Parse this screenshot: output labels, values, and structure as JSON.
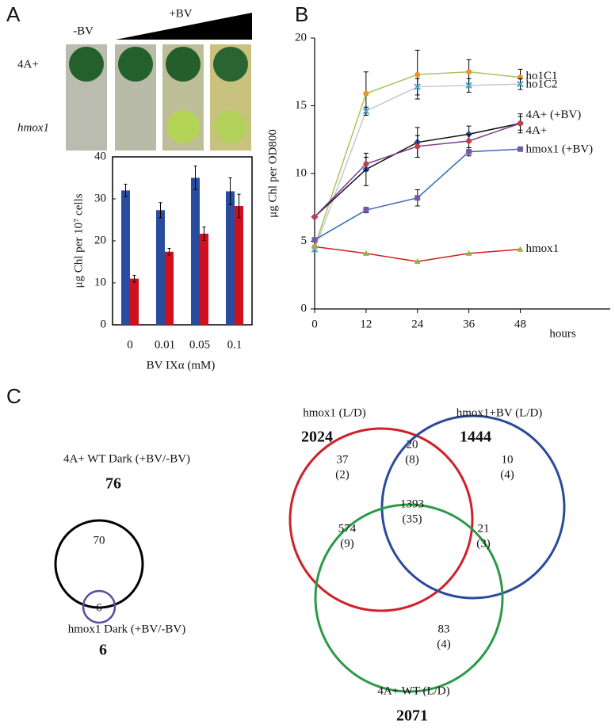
{
  "panel_labels": [
    "A",
    "B",
    "C"
  ],
  "plates": {
    "minus_label": "-BV",
    "plus_label": "+BV",
    "rows": [
      "4A+",
      "hmox1"
    ]
  },
  "chart_data": [
    {
      "type": "bar",
      "ylabel": "μg Chl per 10⁷ cells",
      "xlabel": "BV IXα (mM)",
      "categories": [
        "0",
        "0.01",
        "0.05",
        "0.1"
      ],
      "series": [
        {
          "color": "#2a4c9e",
          "values": [
            32,
            27.3,
            35,
            31.8
          ],
          "errors": [
            1.5,
            1.8,
            2.8,
            3.2
          ]
        },
        {
          "color": "#d0101c",
          "values": [
            11,
            17.4,
            21.7,
            28.3
          ],
          "errors": [
            0.8,
            0.8,
            1.6,
            2.8
          ]
        }
      ],
      "ylim": [
        0,
        40
      ],
      "yticks": [
        0,
        10,
        20,
        30,
        40
      ]
    },
    {
      "type": "line",
      "ylabel": "μg Chl per OD800",
      "xlabel": "hours",
      "x": [
        0,
        12,
        24,
        36,
        48
      ],
      "xlim": [
        0,
        69
      ],
      "xticks": [
        0,
        12,
        24,
        36,
        48
      ],
      "ylim": [
        0,
        20
      ],
      "yticks": [
        0,
        5,
        10,
        15,
        20
      ],
      "series": [
        {
          "name": "ho1C1",
          "color": "#a8c464",
          "marker": "circle",
          "marker_color": "#e8962c",
          "values": [
            4.6,
            15.9,
            17.3,
            17.5,
            17.1
          ],
          "errors": [
            null,
            1.6,
            1.8,
            0.9,
            0.6
          ]
        },
        {
          "name": "ho1C2",
          "color": "#c8c8c8",
          "marker": "x",
          "marker_color": "#4aa8d8",
          "values": [
            4.4,
            14.6,
            16.4,
            16.5,
            16.6
          ],
          "errors": [
            null,
            0.3,
            0.6,
            0.5,
            0.4
          ]
        },
        {
          "name": "4A+ (+BV)",
          "color": "#111111",
          "marker": "diamond",
          "marker_color": "#2a4c9e",
          "values": [
            6.8,
            10.3,
            12.3,
            12.9,
            13.7
          ],
          "errors": [
            null,
            1.2,
            1.1,
            0.6,
            0.7
          ]
        },
        {
          "name": "4A+",
          "color": "#7a3a8e",
          "marker": "circle",
          "marker_color": "#c0404a",
          "values": [
            6.8,
            10.7,
            12.0,
            12.4,
            13.7
          ],
          "errors": [
            null,
            0.5,
            0.8,
            0.5,
            0.5
          ]
        },
        {
          "name": "hmox1 (+BV)",
          "color": "#3a6ab0",
          "marker": "square",
          "marker_color": "#7a56a8",
          "values": [
            5.1,
            7.3,
            8.2,
            11.6,
            11.8
          ],
          "errors": [
            null,
            0.2,
            0.6,
            0.3,
            0.1
          ]
        },
        {
          "name": "hmox1",
          "color": "#d02020",
          "marker": "triangle",
          "marker_color": "#9ab040",
          "values": [
            4.6,
            4.1,
            3.5,
            4.1,
            4.4
          ],
          "errors": [
            null,
            null,
            null,
            null,
            null
          ]
        }
      ]
    },
    {
      "type": "venn",
      "sets": [
        {
          "name": "4A+ WT Dark (+BV/-BV)",
          "total": 76,
          "color": "#000000"
        },
        {
          "name": "hmox1 Dark (+BV/-BV)",
          "total": 6,
          "color": "#5b4a9e"
        }
      ],
      "regions": {
        "values": [
          70,
          6
        ]
      }
    },
    {
      "type": "venn",
      "sets": [
        {
          "name": "hmox1 (L/D)",
          "total": 2024,
          "color": "#d0202a"
        },
        {
          "name": "hmox1+BV (L/D)",
          "total": 1444,
          "color": "#2a4a9a"
        },
        {
          "name": "4A+ WT (L/D)",
          "total": 2071,
          "color": "#2a9a48"
        }
      ],
      "regions": {
        "values": [
          37,
          20,
          10,
          574,
          1393,
          21,
          83
        ],
        "dark_values": [
          2,
          8,
          4,
          9,
          35,
          3,
          4
        ],
        "dark_labels": [
          "(2)",
          "(8)",
          "(4)",
          "(9)",
          "(35)",
          "(3)",
          "(4)"
        ]
      }
    }
  ]
}
